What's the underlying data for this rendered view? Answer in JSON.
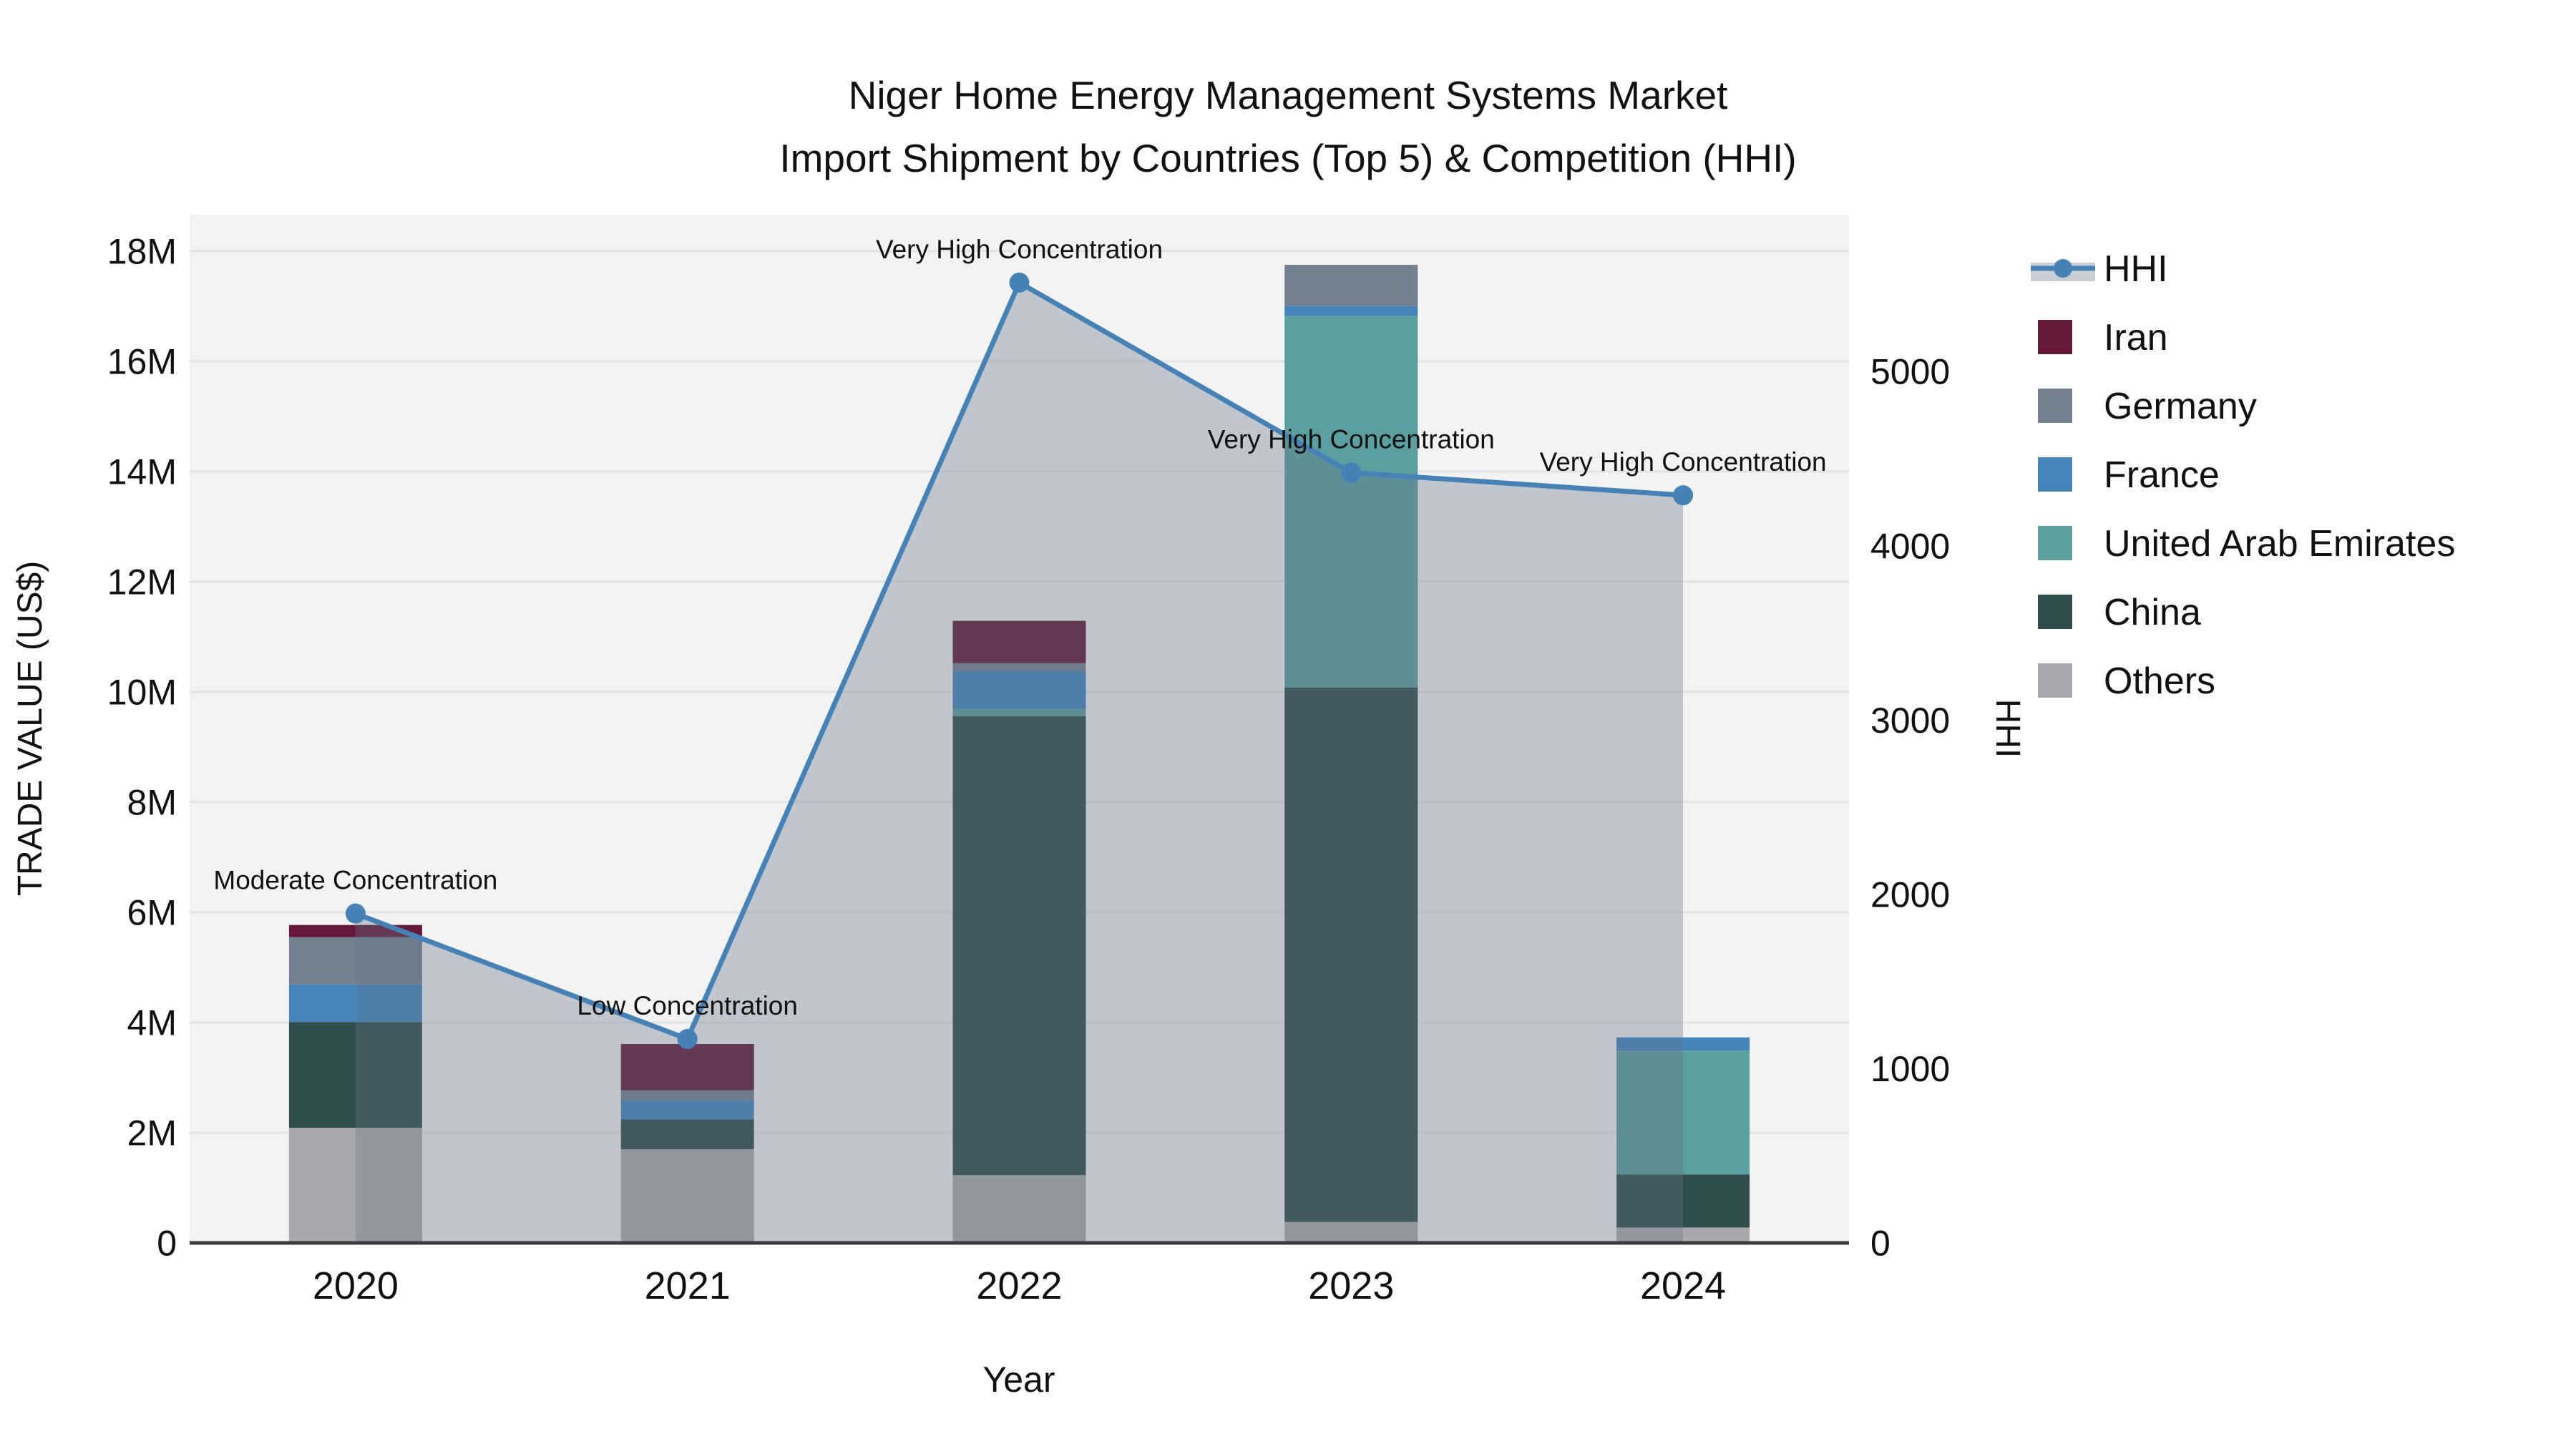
{
  "title": {
    "line1": "Niger Home Energy Management Systems Market",
    "line2": "Import Shipment by Countries (Top 5) & Competition (HHI)"
  },
  "chart_data": {
    "type": "bar+line",
    "categories": [
      "2020",
      "2021",
      "2022",
      "2023",
      "2024"
    ],
    "bar_value_unit": "millions US$",
    "series": [
      {
        "name": "Others",
        "color": "#a9a9ad",
        "values": [
          2.09,
          1.7,
          1.23,
          0.38,
          0.28
        ]
      },
      {
        "name": "China",
        "color": "#2f4e4b",
        "values": [
          1.92,
          0.54,
          8.33,
          9.7,
          0.96
        ]
      },
      {
        "name": "United Arab Emirates",
        "color": "#5b9fa0",
        "values": [
          0.0,
          0.0,
          0.13,
          6.74,
          2.25
        ]
      },
      {
        "name": "France",
        "color": "#4484ba",
        "values": [
          0.68,
          0.35,
          0.69,
          0.18,
          0.24
        ]
      },
      {
        "name": "Germany",
        "color": "#73808f",
        "values": [
          0.86,
          0.18,
          0.14,
          0.75,
          0.0
        ]
      },
      {
        "name": "Iran",
        "color": "#641939",
        "values": [
          0.22,
          0.84,
          0.77,
          0.0,
          0.0
        ]
      }
    ],
    "line_series": {
      "name": "HHI",
      "color": "#4782b6",
      "area_color": "rgba(100,116,136,0.35)",
      "values": [
        1890,
        1170,
        5510,
        4420,
        4290
      ]
    },
    "annotations": [
      "Moderate Concentration",
      "Low Concentration",
      "Very High Concentration",
      "Very High Concentration",
      "Very High Concentration"
    ],
    "xlabel": "Year",
    "ylabel": "TRADE VALUE (US$)",
    "y2label": "HHI",
    "ylim": [
      0,
      18.66
    ],
    "y2lim": [
      0,
      5900
    ],
    "yticks": [
      {
        "value": 0,
        "label": "0"
      },
      {
        "value": 2,
        "label": "2M"
      },
      {
        "value": 4,
        "label": "4M"
      },
      {
        "value": 6,
        "label": "6M"
      },
      {
        "value": 8,
        "label": "8M"
      },
      {
        "value": 10,
        "label": "10M"
      },
      {
        "value": 12,
        "label": "12M"
      },
      {
        "value": 14,
        "label": "14M"
      },
      {
        "value": 16,
        "label": "16M"
      },
      {
        "value": 18,
        "label": "18M"
      }
    ],
    "y2ticks": [
      {
        "value": 0,
        "label": "0"
      },
      {
        "value": 1000,
        "label": "1000"
      },
      {
        "value": 2000,
        "label": "2000"
      },
      {
        "value": 3000,
        "label": "3000"
      },
      {
        "value": 4000,
        "label": "4000"
      },
      {
        "value": 5000,
        "label": "5000"
      }
    ],
    "legend_order": [
      "HHI",
      "Iran",
      "Germany",
      "France",
      "United Arab Emirates",
      "China",
      "Others"
    ],
    "grid_on": true,
    "legend_position": "right",
    "plot_bg": "#f3f3f4",
    "grid_color": "#e3e3e6",
    "axis_line_color": "#3a3a3c"
  }
}
